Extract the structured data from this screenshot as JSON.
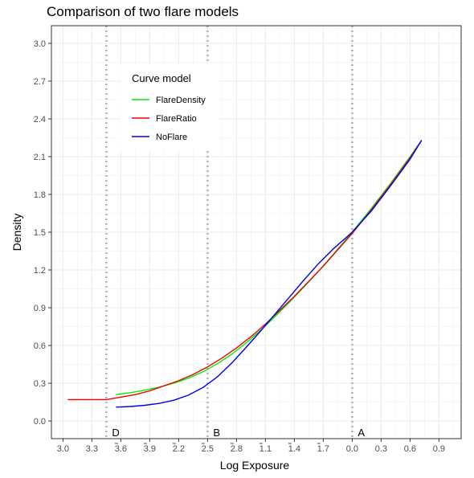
{
  "chart_data": {
    "type": "line",
    "title": "Comparison of two flare models",
    "xlabel": "Log Exposure",
    "ylabel": "Density",
    "xlim": [
      -3.12,
      1.13
    ],
    "ylim": [
      -0.14,
      3.14
    ],
    "x_ticks": [
      -3.0,
      -2.7,
      -2.4,
      -2.1,
      -1.8,
      -1.5,
      -1.2,
      -0.9,
      -0.6,
      -0.3,
      0.0,
      0.3,
      0.6,
      0.9
    ],
    "x_tick_labels": [
      "3.0",
      "3.3",
      "3.6",
      "3.9",
      "2.2",
      "2.5",
      "2.8",
      "1.1",
      "1.4",
      "1.7",
      "0.0",
      "0.3",
      "0.6",
      "0.9"
    ],
    "x_tick_overbar": [
      false,
      false,
      true,
      true,
      true,
      true,
      true,
      true,
      true,
      true,
      false,
      false,
      false,
      false
    ],
    "y_ticks": [
      0.0,
      0.3,
      0.6,
      0.9,
      1.2,
      1.5,
      1.8,
      2.1,
      2.4,
      2.7,
      3.0
    ],
    "y_tick_labels": [
      "0.0",
      "0.3",
      "0.6",
      "0.9",
      "1.2",
      "1.5",
      "1.8",
      "2.1",
      "2.4",
      "2.7",
      "3.0"
    ],
    "grid": true,
    "legend": {
      "title": "Curve model",
      "placement": "top-left"
    },
    "vlines": [
      {
        "x": -2.55,
        "label": "D"
      },
      {
        "x": -1.5,
        "label": "B"
      },
      {
        "x": 0.0,
        "label": "A"
      }
    ],
    "series": [
      {
        "name": "FlareDensity",
        "color": "#00ee00",
        "x": [
          -2.45,
          -2.3,
          -2.15,
          -2.0,
          -1.85,
          -1.7,
          -1.55,
          -1.4,
          -1.25,
          -1.1,
          -0.95,
          -0.8,
          -0.65,
          -0.5,
          -0.35,
          -0.2,
          0.0,
          0.2,
          0.4,
          0.6,
          0.72
        ],
        "y": [
          0.21,
          0.225,
          0.245,
          0.27,
          0.3,
          0.34,
          0.39,
          0.455,
          0.53,
          0.62,
          0.72,
          0.83,
          0.945,
          1.065,
          1.19,
          1.32,
          1.5,
          1.69,
          1.89,
          2.1,
          2.23
        ]
      },
      {
        "name": "FlareRatio",
        "color": "#ee0000",
        "x": [
          -2.95,
          -2.8,
          -2.65,
          -2.55,
          -2.4,
          -2.25,
          -2.1,
          -1.95,
          -1.8,
          -1.65,
          -1.5,
          -1.35,
          -1.2,
          -1.05,
          -0.9,
          -0.75,
          -0.6,
          -0.45,
          -0.3,
          -0.15,
          0.0,
          0.2,
          0.4,
          0.6,
          0.72
        ],
        "y": [
          0.17,
          0.17,
          0.17,
          0.17,
          0.19,
          0.21,
          0.24,
          0.28,
          0.32,
          0.37,
          0.43,
          0.5,
          0.58,
          0.67,
          0.77,
          0.88,
          0.99,
          1.11,
          1.23,
          1.36,
          1.49,
          1.68,
          1.88,
          2.09,
          2.23
        ]
      },
      {
        "name": "NoFlare",
        "color": "#0000ee",
        "x": [
          -2.45,
          -2.3,
          -2.15,
          -2.0,
          -1.85,
          -1.7,
          -1.55,
          -1.4,
          -1.25,
          -1.1,
          -0.95,
          -0.8,
          -0.65,
          -0.5,
          -0.35,
          -0.2,
          0.0,
          0.2,
          0.4,
          0.6,
          0.72
        ],
        "y": [
          0.11,
          0.115,
          0.125,
          0.14,
          0.165,
          0.205,
          0.265,
          0.35,
          0.46,
          0.585,
          0.715,
          0.85,
          0.985,
          1.12,
          1.25,
          1.365,
          1.5,
          1.67,
          1.87,
          2.08,
          2.23
        ]
      }
    ]
  }
}
